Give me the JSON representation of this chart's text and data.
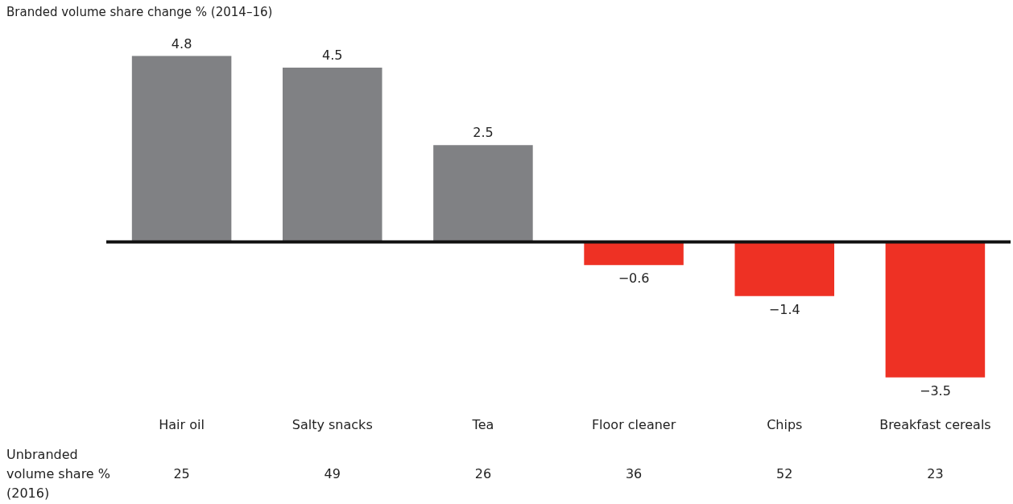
{
  "chart_data": {
    "type": "bar",
    "title": "Branded volume share change % (2014–16)",
    "categories": [
      "Hair oil",
      "Salty snacks",
      "Tea",
      "Floor cleaner",
      "Chips",
      "Breakfast cereals"
    ],
    "values": [
      4.8,
      4.5,
      2.5,
      -0.6,
      -1.4,
      -3.5
    ],
    "colors": [
      "#808184",
      "#808184",
      "#808184",
      "#ee3124",
      "#ee3124",
      "#ee3124"
    ],
    "data_labels": true,
    "annotations": [
      "Unbranded\nvolume share %\n(2016)",
      "25",
      "49",
      "26",
      "36",
      "52",
      "23"
    ]
  }
}
